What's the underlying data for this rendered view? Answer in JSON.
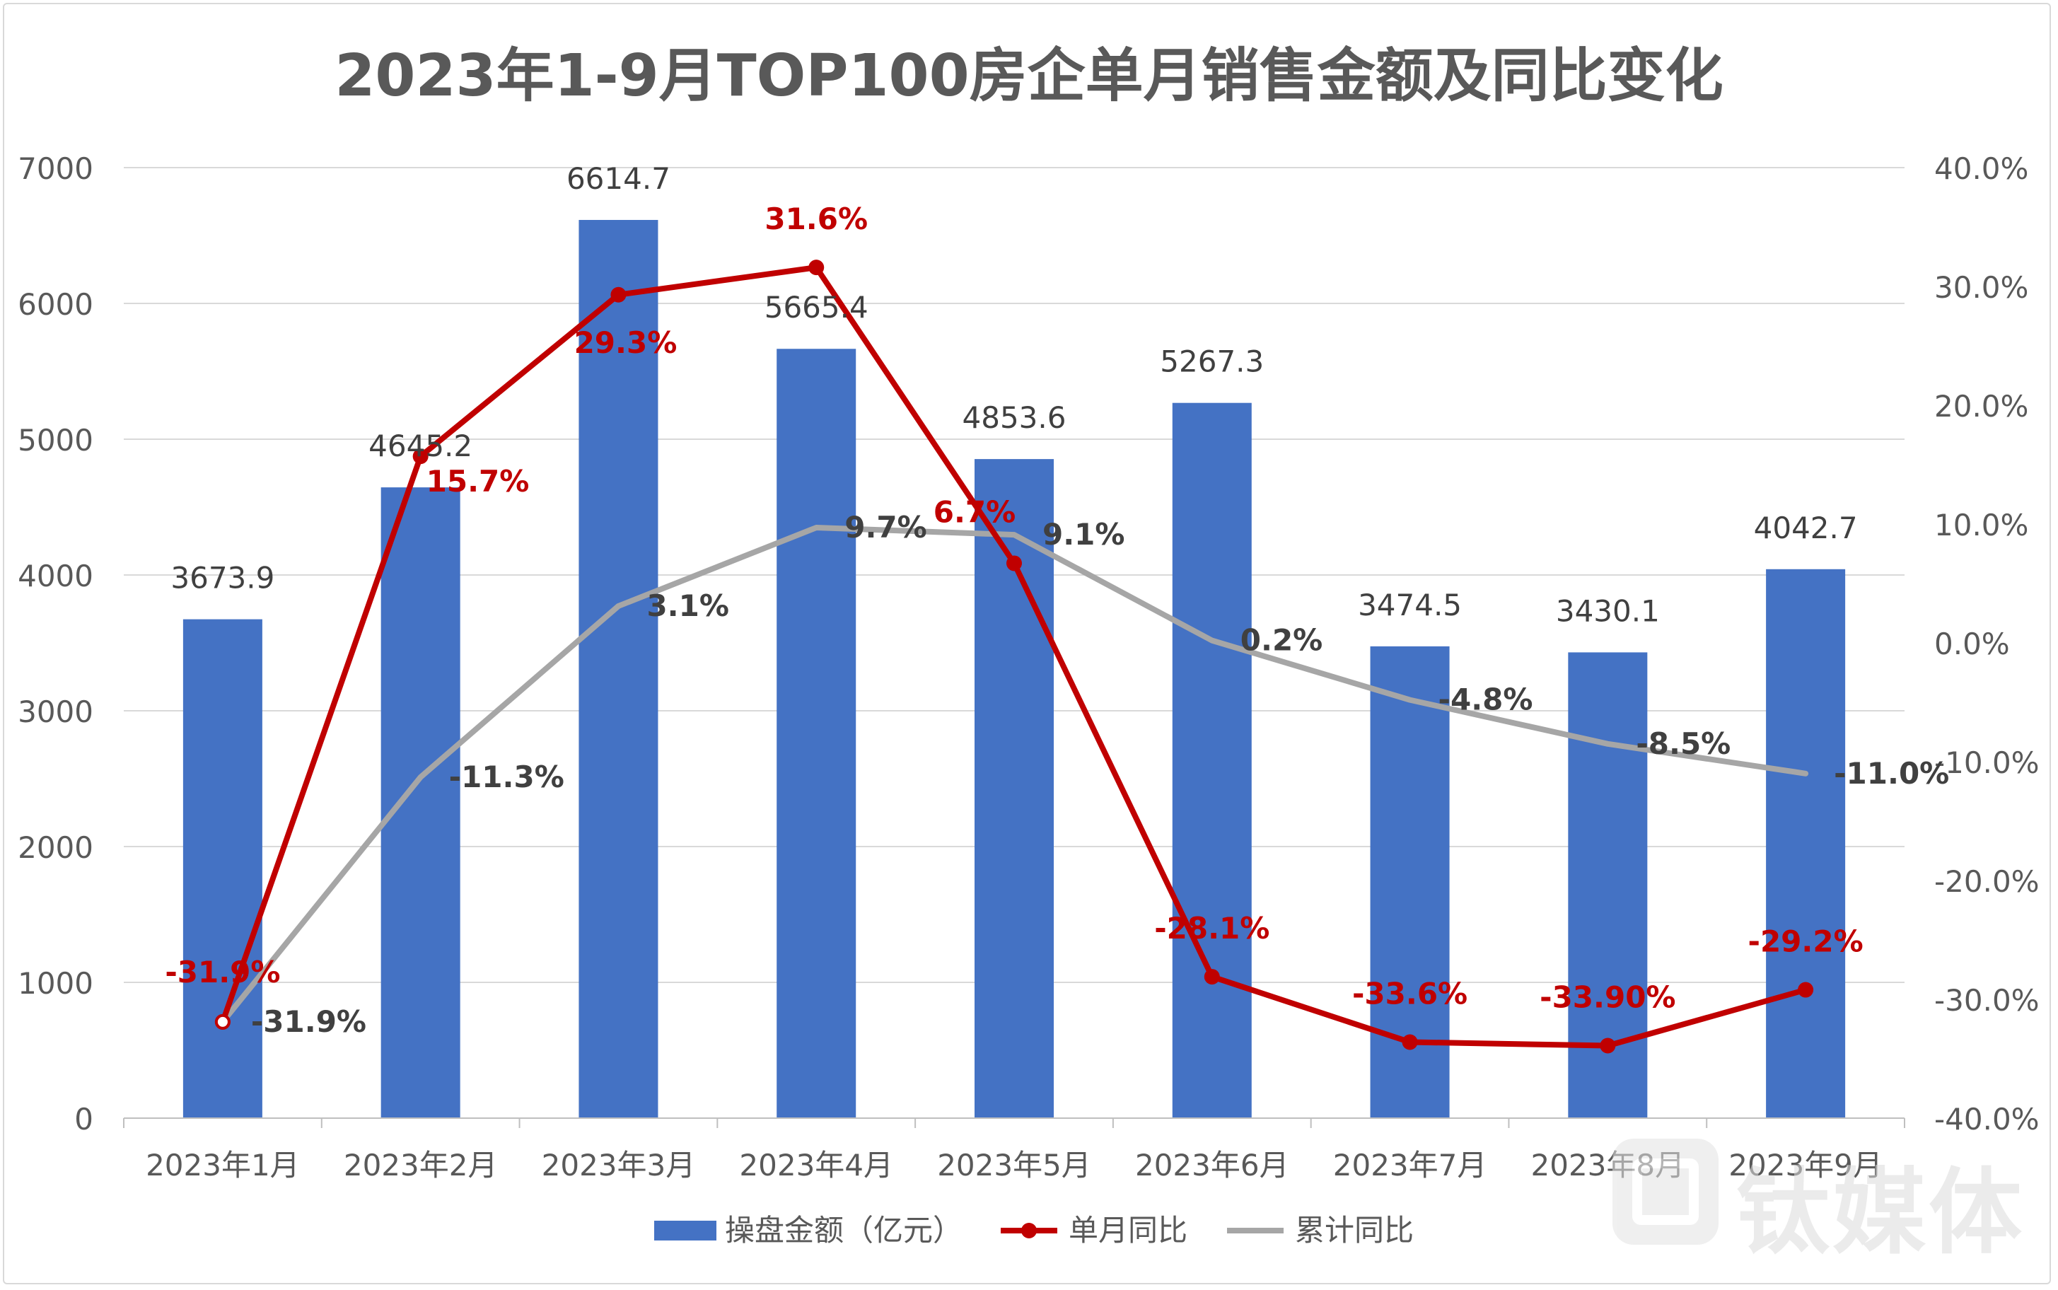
{
  "chart_data": {
    "type": "bar",
    "title": "2023年1-9月TOP100房企单月销售金额及同比变化",
    "categories": [
      "2023年1月",
      "2023年2月",
      "2023年3月",
      "2023年4月",
      "2023年5月",
      "2023年6月",
      "2023年7月",
      "2023年8月",
      "2023年9月"
    ],
    "series": [
      {
        "name": "操盘金额（亿元）",
        "kind": "bar",
        "axis": "left",
        "color": "#4472c4",
        "values": [
          3673.9,
          4645.2,
          6614.7,
          5665.4,
          4853.6,
          5267.3,
          3474.5,
          3430.1,
          4042.7
        ],
        "labels": [
          "3673.9",
          "4645.2",
          "6614.7",
          "5665.4",
          "4853.6",
          "5267.3",
          "3474.5",
          "3430.1",
          "4042.7"
        ]
      },
      {
        "name": "单月同比",
        "kind": "line",
        "axis": "right",
        "color": "#c00000",
        "values": [
          -31.9,
          15.7,
          29.3,
          31.6,
          6.7,
          -28.1,
          -33.6,
          -33.9,
          -29.2
        ],
        "labels": [
          "-31.9%",
          "15.7%",
          "29.3%",
          "31.6%",
          "6.7%",
          "-28.1%",
          "-33.6%",
          "-33.90%",
          "-29.2%"
        ]
      },
      {
        "name": "累计同比",
        "kind": "line",
        "axis": "right",
        "color": "#a6a6a6",
        "values": [
          -31.9,
          -11.3,
          3.1,
          9.7,
          9.1,
          0.2,
          -4.8,
          -8.5,
          -11.0
        ],
        "labels": [
          "-31.9%",
          "-11.3%",
          "3.1%",
          "9.7%",
          "9.1%",
          "0.2%",
          "-4.8%",
          "-8.5%",
          "-11.0%"
        ]
      }
    ],
    "y_left": {
      "min": 0,
      "max": 7000,
      "step": 1000,
      "ticks": [
        "0",
        "1000",
        "2000",
        "3000",
        "4000",
        "5000",
        "6000",
        "7000"
      ]
    },
    "y_right": {
      "min": -40,
      "max": 40,
      "step": 10,
      "ticks": [
        "-40.0%",
        "-30.0%",
        "-20.0%",
        "-10.0%",
        "0.0%",
        "10.0%",
        "20.0%",
        "30.0%",
        "40.0%"
      ]
    },
    "grid": true,
    "legend": "bottom"
  },
  "watermark": {
    "text": "钛媒体",
    "icon": "tmt-logo-icon"
  }
}
